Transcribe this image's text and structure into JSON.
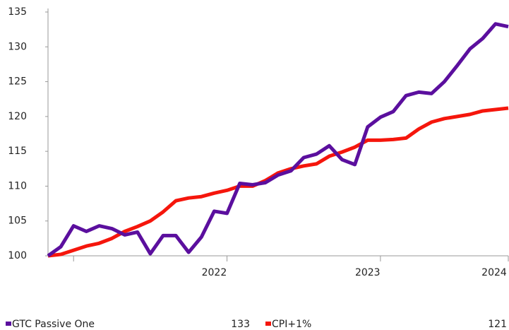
{
  "chart_data": {
    "type": "line",
    "categories": [
      null,
      null,
      null,
      null,
      null,
      null,
      null,
      null,
      null,
      null,
      null,
      null,
      null,
      "2022",
      null,
      null,
      null,
      null,
      null,
      null,
      null,
      null,
      null,
      null,
      null,
      "2023",
      null,
      null,
      null,
      null,
      null,
      null,
      null,
      null,
      null,
      "2024",
      null
    ],
    "series": [
      {
        "name": "GTC Passive One",
        "color": "#5b0f9e",
        "legend_value": 133,
        "values": [
          100,
          101.3,
          104.3,
          103.5,
          104.3,
          103.9,
          103.0,
          103.4,
          100.3,
          102.9,
          102.9,
          100.5,
          102.7,
          106.4,
          106.1,
          110.4,
          110.2,
          110.5,
          111.6,
          112.2,
          114.1,
          114.6,
          115.8,
          113.8,
          113.1,
          118.5,
          119.9,
          120.7,
          123.0,
          123.5,
          123.3,
          125.0,
          127.3,
          129.7,
          131.2,
          133.3,
          132.9
        ]
      },
      {
        "name": "CPI+1%",
        "color": "#f5160c",
        "legend_value": 121,
        "values": [
          100,
          100.2,
          100.8,
          101.4,
          101.8,
          102.5,
          103.5,
          104.2,
          105.0,
          106.3,
          107.9,
          108.3,
          108.5,
          109.0,
          109.4,
          110.0,
          110.0,
          110.8,
          111.9,
          112.5,
          112.9,
          113.2,
          114.3,
          114.9,
          115.6,
          116.6,
          116.6,
          116.7,
          116.9,
          118.2,
          119.2,
          119.7,
          120.0,
          120.3,
          120.8,
          121.0,
          121.2
        ]
      }
    ],
    "ylim": [
      100,
      135
    ],
    "yticks": [
      100,
      105,
      110,
      115,
      120,
      125,
      130,
      135
    ],
    "grid": false
  }
}
